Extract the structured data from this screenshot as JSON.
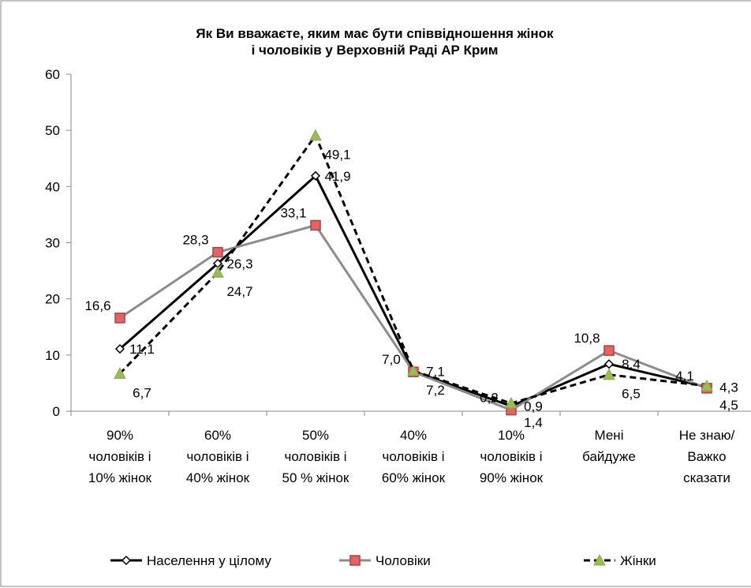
{
  "chart_data": {
    "type": "line",
    "title": "Як Ви вважаєте, яким має бути співвідношення жінок\nі чоловіків у Верховній Раді АР Крим",
    "categories": [
      "90%\nчоловіків і\n10% жінок",
      "60%\nчоловіків і\n40% жінок",
      "50%\nчоловіків і\n50 % жінок",
      "40%\nчоловіків і\n60% жінок",
      "10%\nчоловіків і\n90% жінок",
      "Мені\nбайдуже",
      "Не знаю/\nВажко\nсказати"
    ],
    "series": [
      {
        "name": "Населення у цілому",
        "color": "#000000",
        "marker": "diamond",
        "dash": false,
        "values": [
          11.1,
          26.3,
          41.9,
          7.1,
          0.9,
          8.4,
          4.3
        ],
        "value_labels": [
          "11,1",
          "26,3",
          "41,9",
          "7,1",
          "0,9",
          "8,4",
          "4,3"
        ]
      },
      {
        "name": "Чоловіки",
        "color": "#8c8c8c",
        "marker": "square",
        "dash": false,
        "values": [
          16.6,
          28.3,
          33.1,
          7.0,
          0.2,
          10.8,
          4.1
        ],
        "value_labels": [
          "16,6",
          "28,3",
          "33,1",
          "7,0",
          "0,2",
          "10,8",
          "4,1"
        ]
      },
      {
        "name": "Жінки",
        "color": "#000000",
        "marker": "triangle",
        "dash": true,
        "values": [
          6.7,
          24.7,
          49.1,
          7.2,
          1.4,
          6.5,
          4.5
        ],
        "value_labels": [
          "6,7",
          "24,7",
          "49,1",
          "7,2",
          "1,4",
          "6,5",
          "4,5"
        ]
      }
    ],
    "ylim": [
      0,
      60
    ],
    "yticks": [
      0,
      10,
      20,
      30,
      40,
      50,
      60
    ],
    "grid": false,
    "legend": "bottom"
  }
}
